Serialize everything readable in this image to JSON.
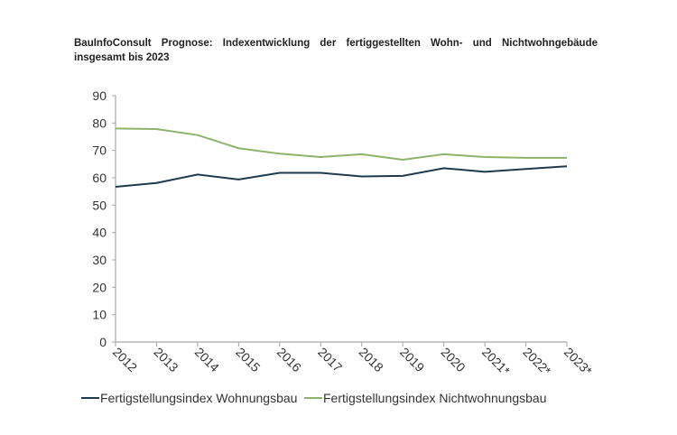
{
  "chart_data": {
    "type": "line",
    "title": "BauInfoConsult Prognose: Indexentwicklung der fertiggestellten Wohn- und Nichtwohngebäude insgesamt bis 2023",
    "categories": [
      "2012",
      "2013",
      "2014",
      "2015",
      "2016",
      "2017",
      "2018",
      "2019",
      "2020",
      "2021*",
      "2022*",
      "2023*"
    ],
    "series": [
      {
        "name": "Fertigstellungsindex Wohnungsbau",
        "color": "#1f3a4d",
        "values": [
          56.7,
          58.1,
          61.2,
          59.4,
          61.8,
          61.8,
          60.5,
          60.7,
          63.5,
          62.2,
          63.2,
          64.2
        ]
      },
      {
        "name": "Fertigstellungsindex Nichtwohnungsbau",
        "color": "#8db36a",
        "values": [
          78.0,
          77.8,
          75.6,
          70.8,
          68.8,
          67.6,
          68.6,
          66.6,
          68.6,
          67.6,
          67.3,
          67.3
        ]
      }
    ],
    "yticks": [
      "0",
      "10",
      "20",
      "30",
      "40",
      "50",
      "60",
      "70",
      "80",
      "90"
    ],
    "ylim": [
      0,
      90
    ],
    "xlabel": "",
    "ylabel": "",
    "grid": false,
    "legend": "bottom"
  }
}
